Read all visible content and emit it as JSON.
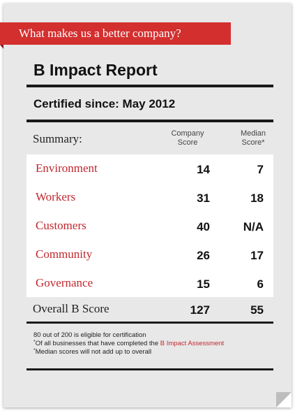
{
  "banner": {
    "text": "What makes us a better company?"
  },
  "report": {
    "title": "B Impact Report",
    "certified_label": "Certified since:",
    "certified_date": "May 2012"
  },
  "summary": {
    "label": "Summary:",
    "col1_line1": "Company",
    "col1_line2": "Score",
    "col2_line1": "Median",
    "col2_line2": "Score*",
    "rows": [
      {
        "label": "Environment",
        "company": "14",
        "median": "7"
      },
      {
        "label": "Workers",
        "company": "31",
        "median": "18"
      },
      {
        "label": "Customers",
        "company": "40",
        "median": "N/A"
      },
      {
        "label": "Community",
        "company": "26",
        "median": "17"
      },
      {
        "label": "Governance",
        "company": "15",
        "median": "6"
      }
    ],
    "overall": {
      "label": "Overall B Score",
      "company": "127",
      "median": "55"
    }
  },
  "notes": {
    "line1": "80 out of 200 is eligible for certification",
    "mark2": "*",
    "line2": "Of all businesses that have completed the ",
    "line2_link": "B Impact Assessment",
    "mark3": "*",
    "line3": "Median scores will not add up to overall"
  },
  "colors": {
    "accent": "#c1272d",
    "banner": "#d42f2f",
    "card": "#e8e8e8"
  }
}
